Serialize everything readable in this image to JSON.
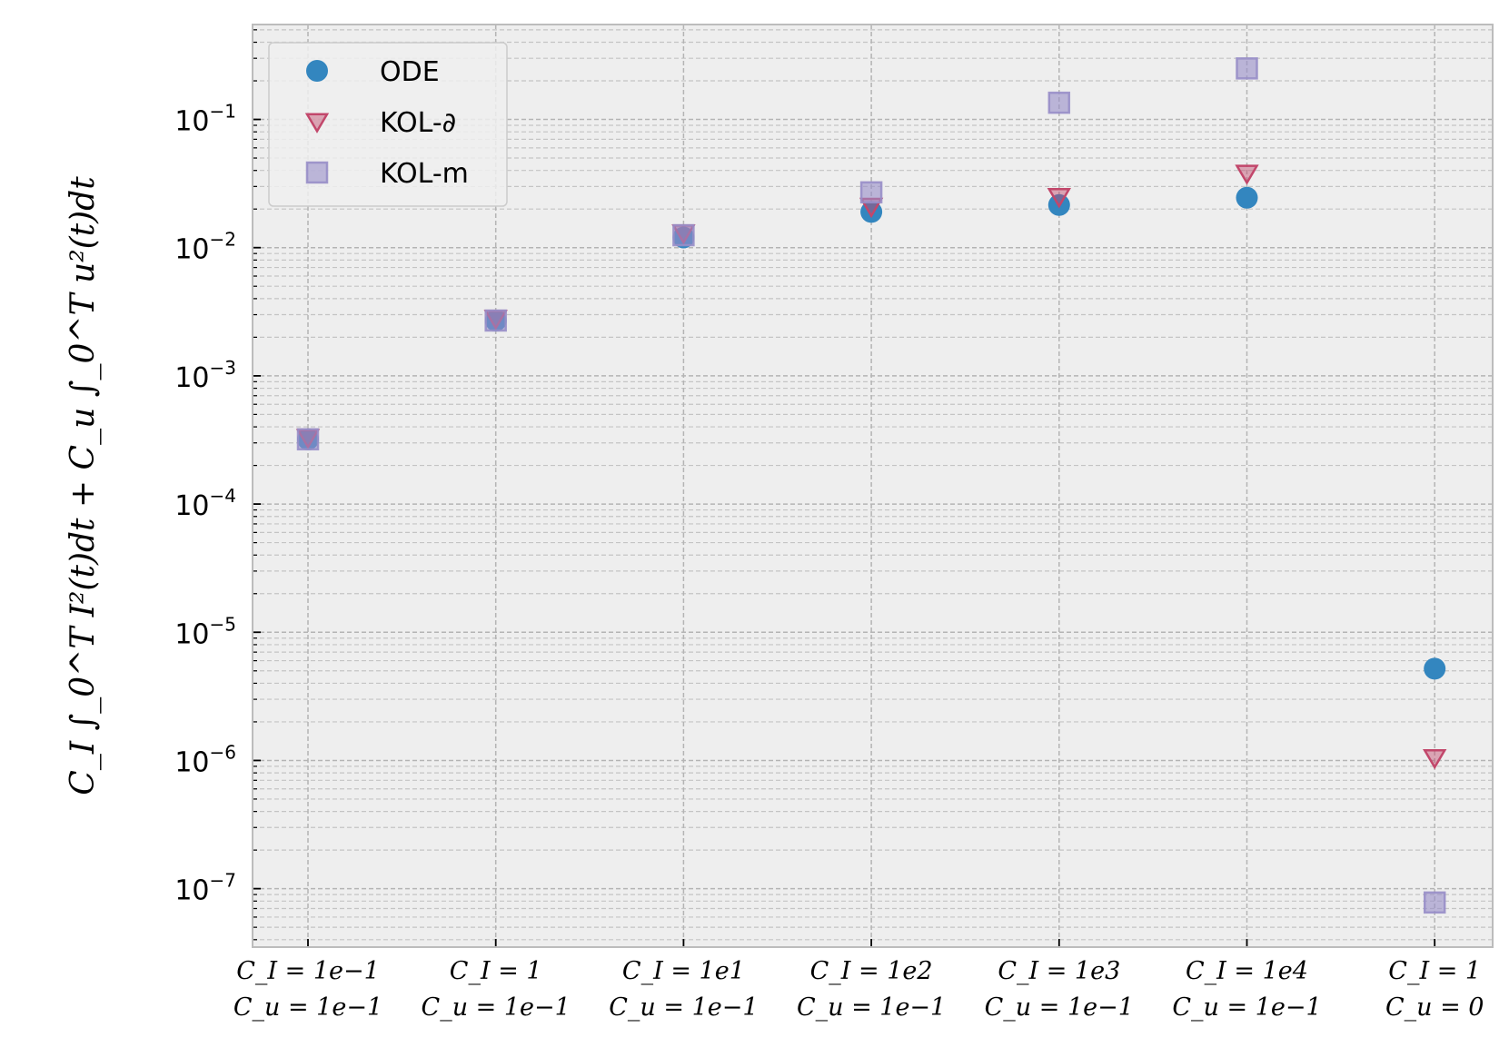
{
  "chart_data": {
    "type": "scatter",
    "yscale": "log",
    "ylim": [
      3.5e-08,
      0.55
    ],
    "grid": "on (major and minor, dashed)",
    "legend_position": "top-left",
    "ylabel": "C_I ∫_0^T I²(t)dt + C_u ∫_0^T u²(t)dt",
    "categories": [
      {
        "line1": "C_I = 1e−1",
        "line2": "C_u = 1e−1"
      },
      {
        "line1": "C_I = 1",
        "line2": "C_u = 1e−1"
      },
      {
        "line1": "C_I = 1e1",
        "line2": "C_u = 1e−1"
      },
      {
        "line1": "C_I = 1e2",
        "line2": "C_u = 1e−1"
      },
      {
        "line1": "C_I = 1e3",
        "line2": "C_u = 1e−1"
      },
      {
        "line1": "C_I = 1e4",
        "line2": "C_u = 1e−1"
      },
      {
        "line1": "C_I = 1",
        "line2": "C_u = 0"
      }
    ],
    "yticks": [
      {
        "value": 1e-07,
        "base": "10",
        "exp": "−7"
      },
      {
        "value": 1e-06,
        "base": "10",
        "exp": "−6"
      },
      {
        "value": 1e-05,
        "base": "10",
        "exp": "−5"
      },
      {
        "value": 0.0001,
        "base": "10",
        "exp": "−4"
      },
      {
        "value": 0.001,
        "base": "10",
        "exp": "−3"
      },
      {
        "value": 0.01,
        "base": "10",
        "exp": "−2"
      },
      {
        "value": 0.1,
        "base": "10",
        "exp": "−1"
      }
    ],
    "series": [
      {
        "name": "ODE",
        "marker": "circle",
        "color": "#3386bf",
        "values": [
          0.00032,
          0.0027,
          0.012,
          0.019,
          0.0215,
          0.0245,
          5.2e-06
        ]
      },
      {
        "name": "KOL-∂",
        "marker": "triangle-down",
        "color": "#c2476b",
        "values": [
          0.00033,
          0.0028,
          0.013,
          0.021,
          0.025,
          0.038,
          1.05e-06
        ]
      },
      {
        "name": "KOL-m",
        "marker": "square",
        "color": "#988ec8",
        "values": [
          0.00032,
          0.0027,
          0.0125,
          0.027,
          0.135,
          0.25,
          7.8e-08
        ]
      }
    ]
  }
}
